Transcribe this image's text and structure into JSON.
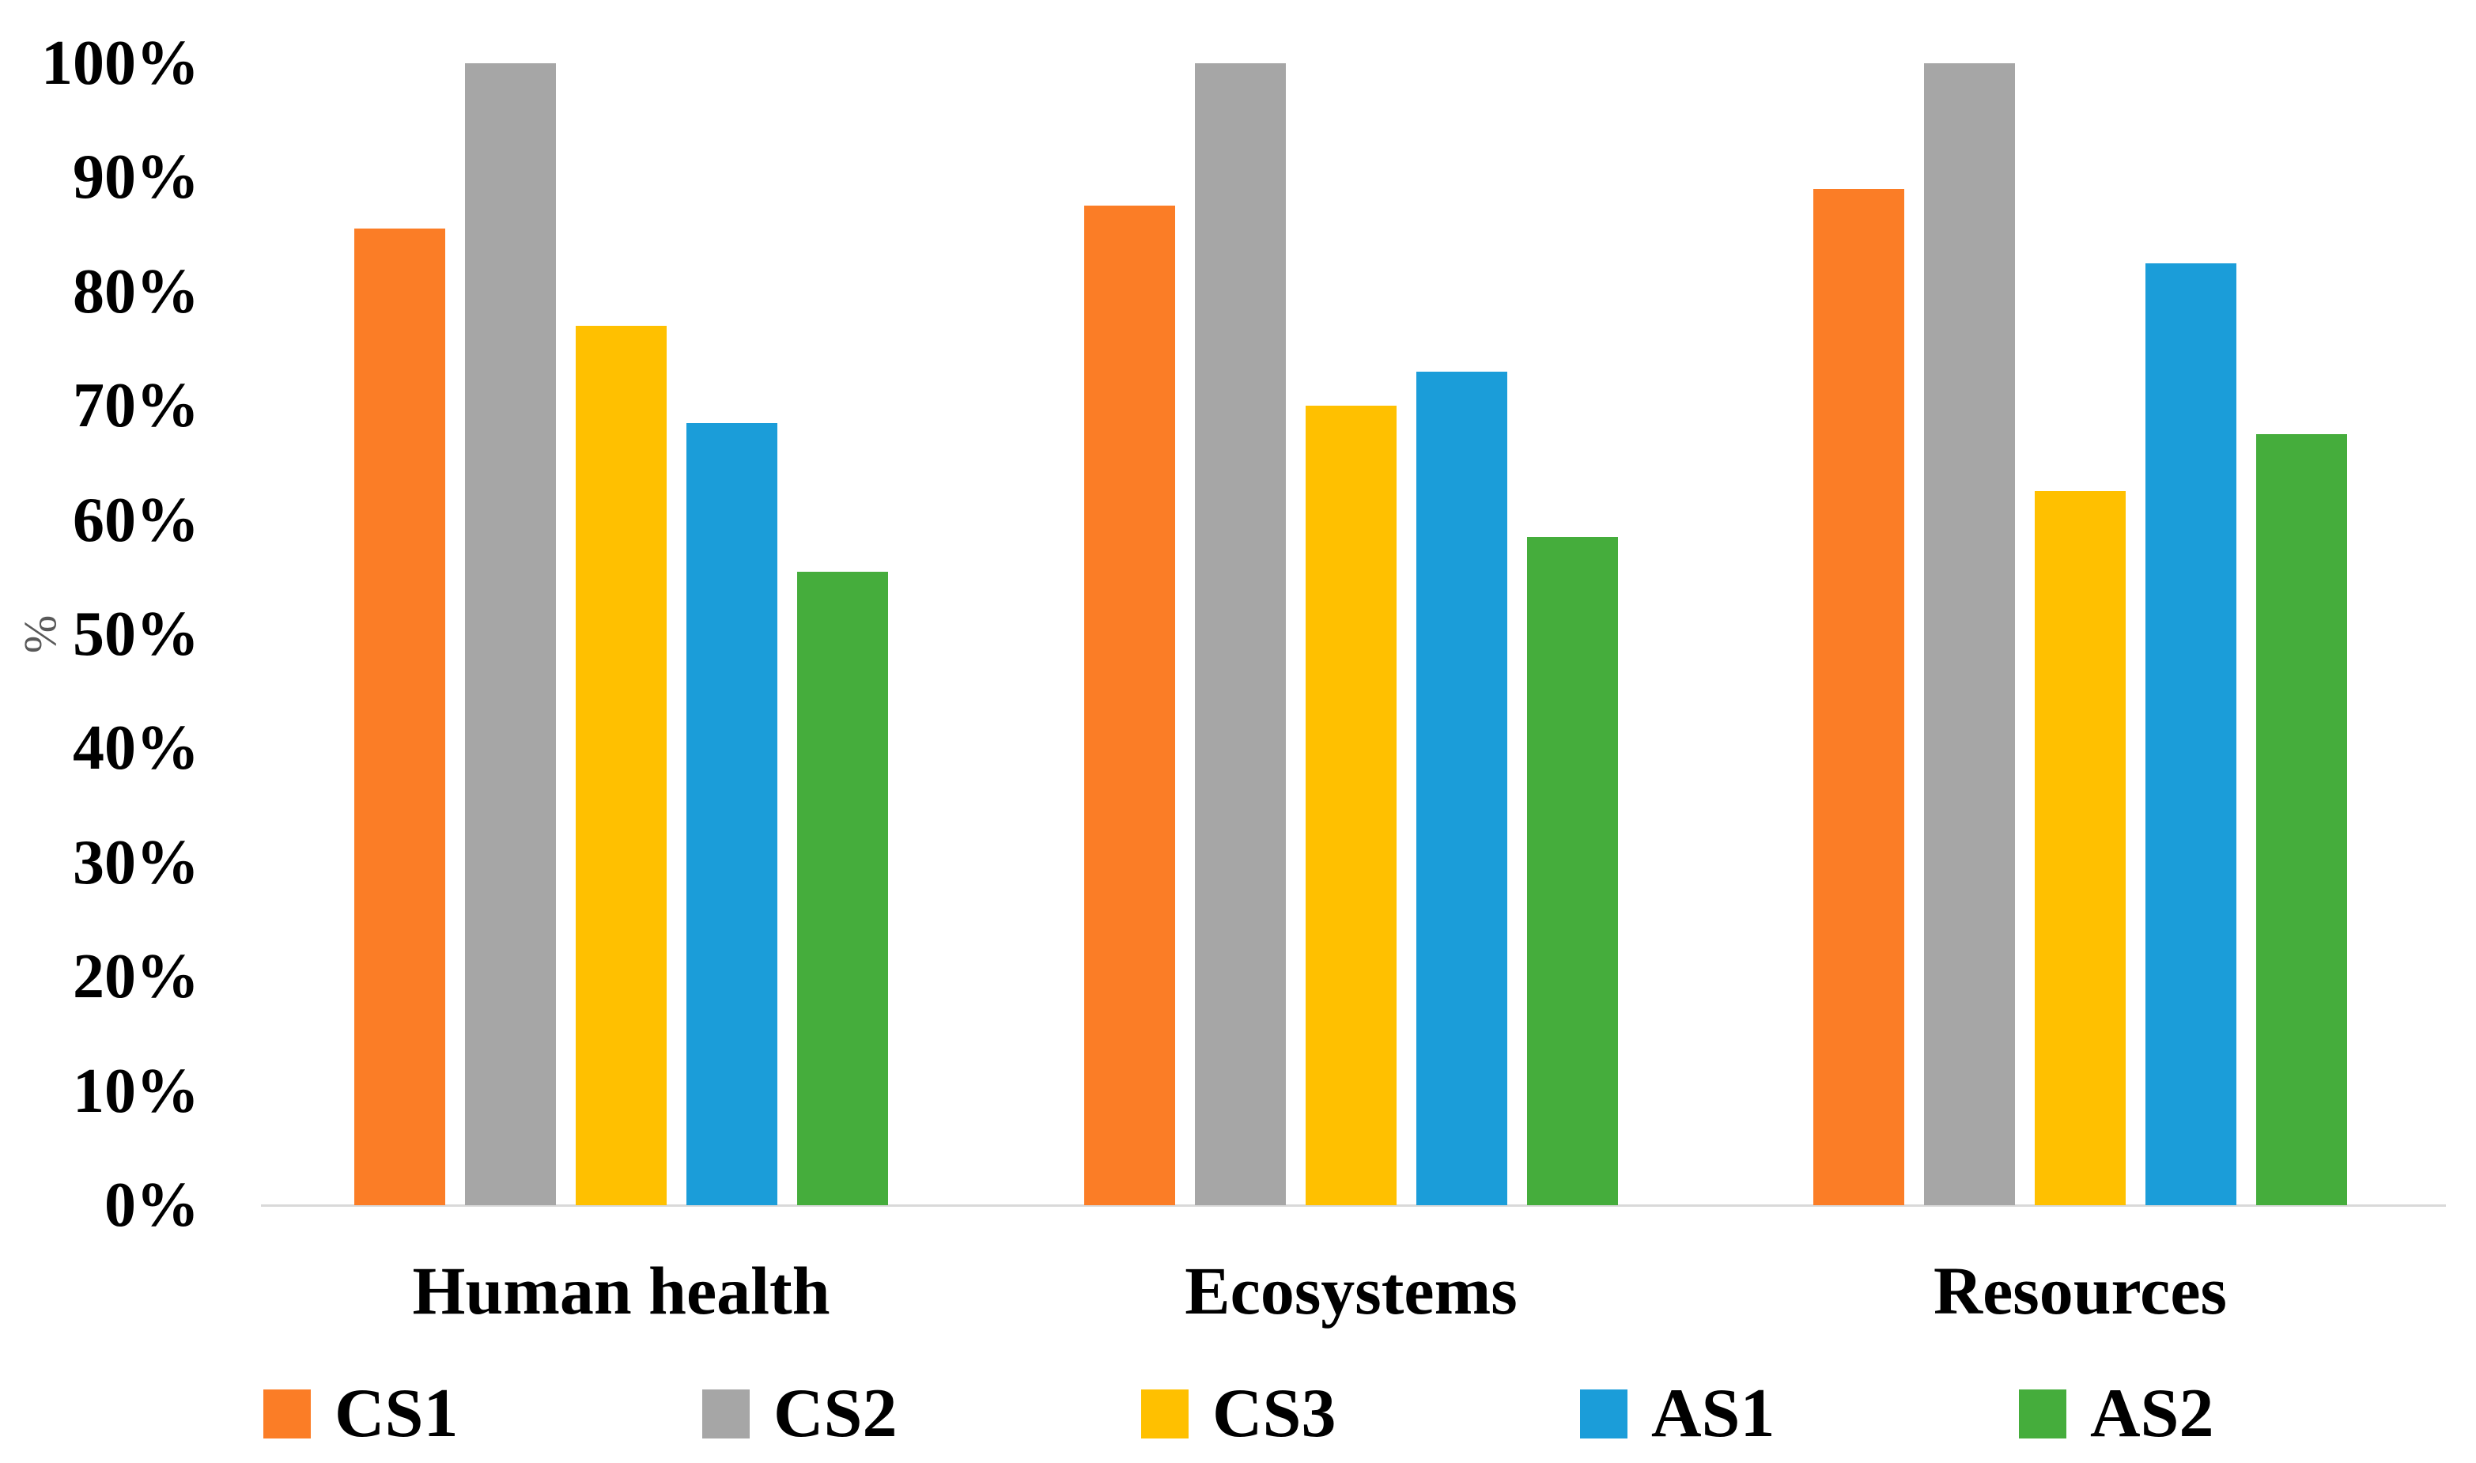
{
  "chart_data": {
    "type": "bar",
    "title": "",
    "categories": [
      "Human health",
      "Ecosystems",
      "Resources"
    ],
    "series": [
      {
        "name": "CS1",
        "color": "#FB7D26",
        "values": [
          85.5,
          87.5,
          89.0
        ]
      },
      {
        "name": "CS2",
        "color": "#A6A6A6",
        "values": [
          100,
          100,
          100
        ]
      },
      {
        "name": "CS3",
        "color": "#FFC000",
        "values": [
          77.0,
          70.0,
          62.5
        ]
      },
      {
        "name": "AS1",
        "color": "#1B9DD9",
        "values": [
          68.5,
          73.0,
          82.5
        ]
      },
      {
        "name": "AS2",
        "color": "#45AD3C",
        "values": [
          55.5,
          58.5,
          67.5
        ]
      }
    ],
    "xlabel": "",
    "ylabel": "%",
    "ylim": [
      0,
      100
    ],
    "y_ticks": [
      "0%",
      "10%",
      "20%",
      "30%",
      "40%",
      "50%",
      "60%",
      "70%",
      "80%",
      "90%",
      "100%"
    ],
    "grid": false,
    "legend_position": "bottom",
    "axis_line_color": "#D9D9D9",
    "tick_label_color": "#000000",
    "ylabel_color": "#595959"
  }
}
